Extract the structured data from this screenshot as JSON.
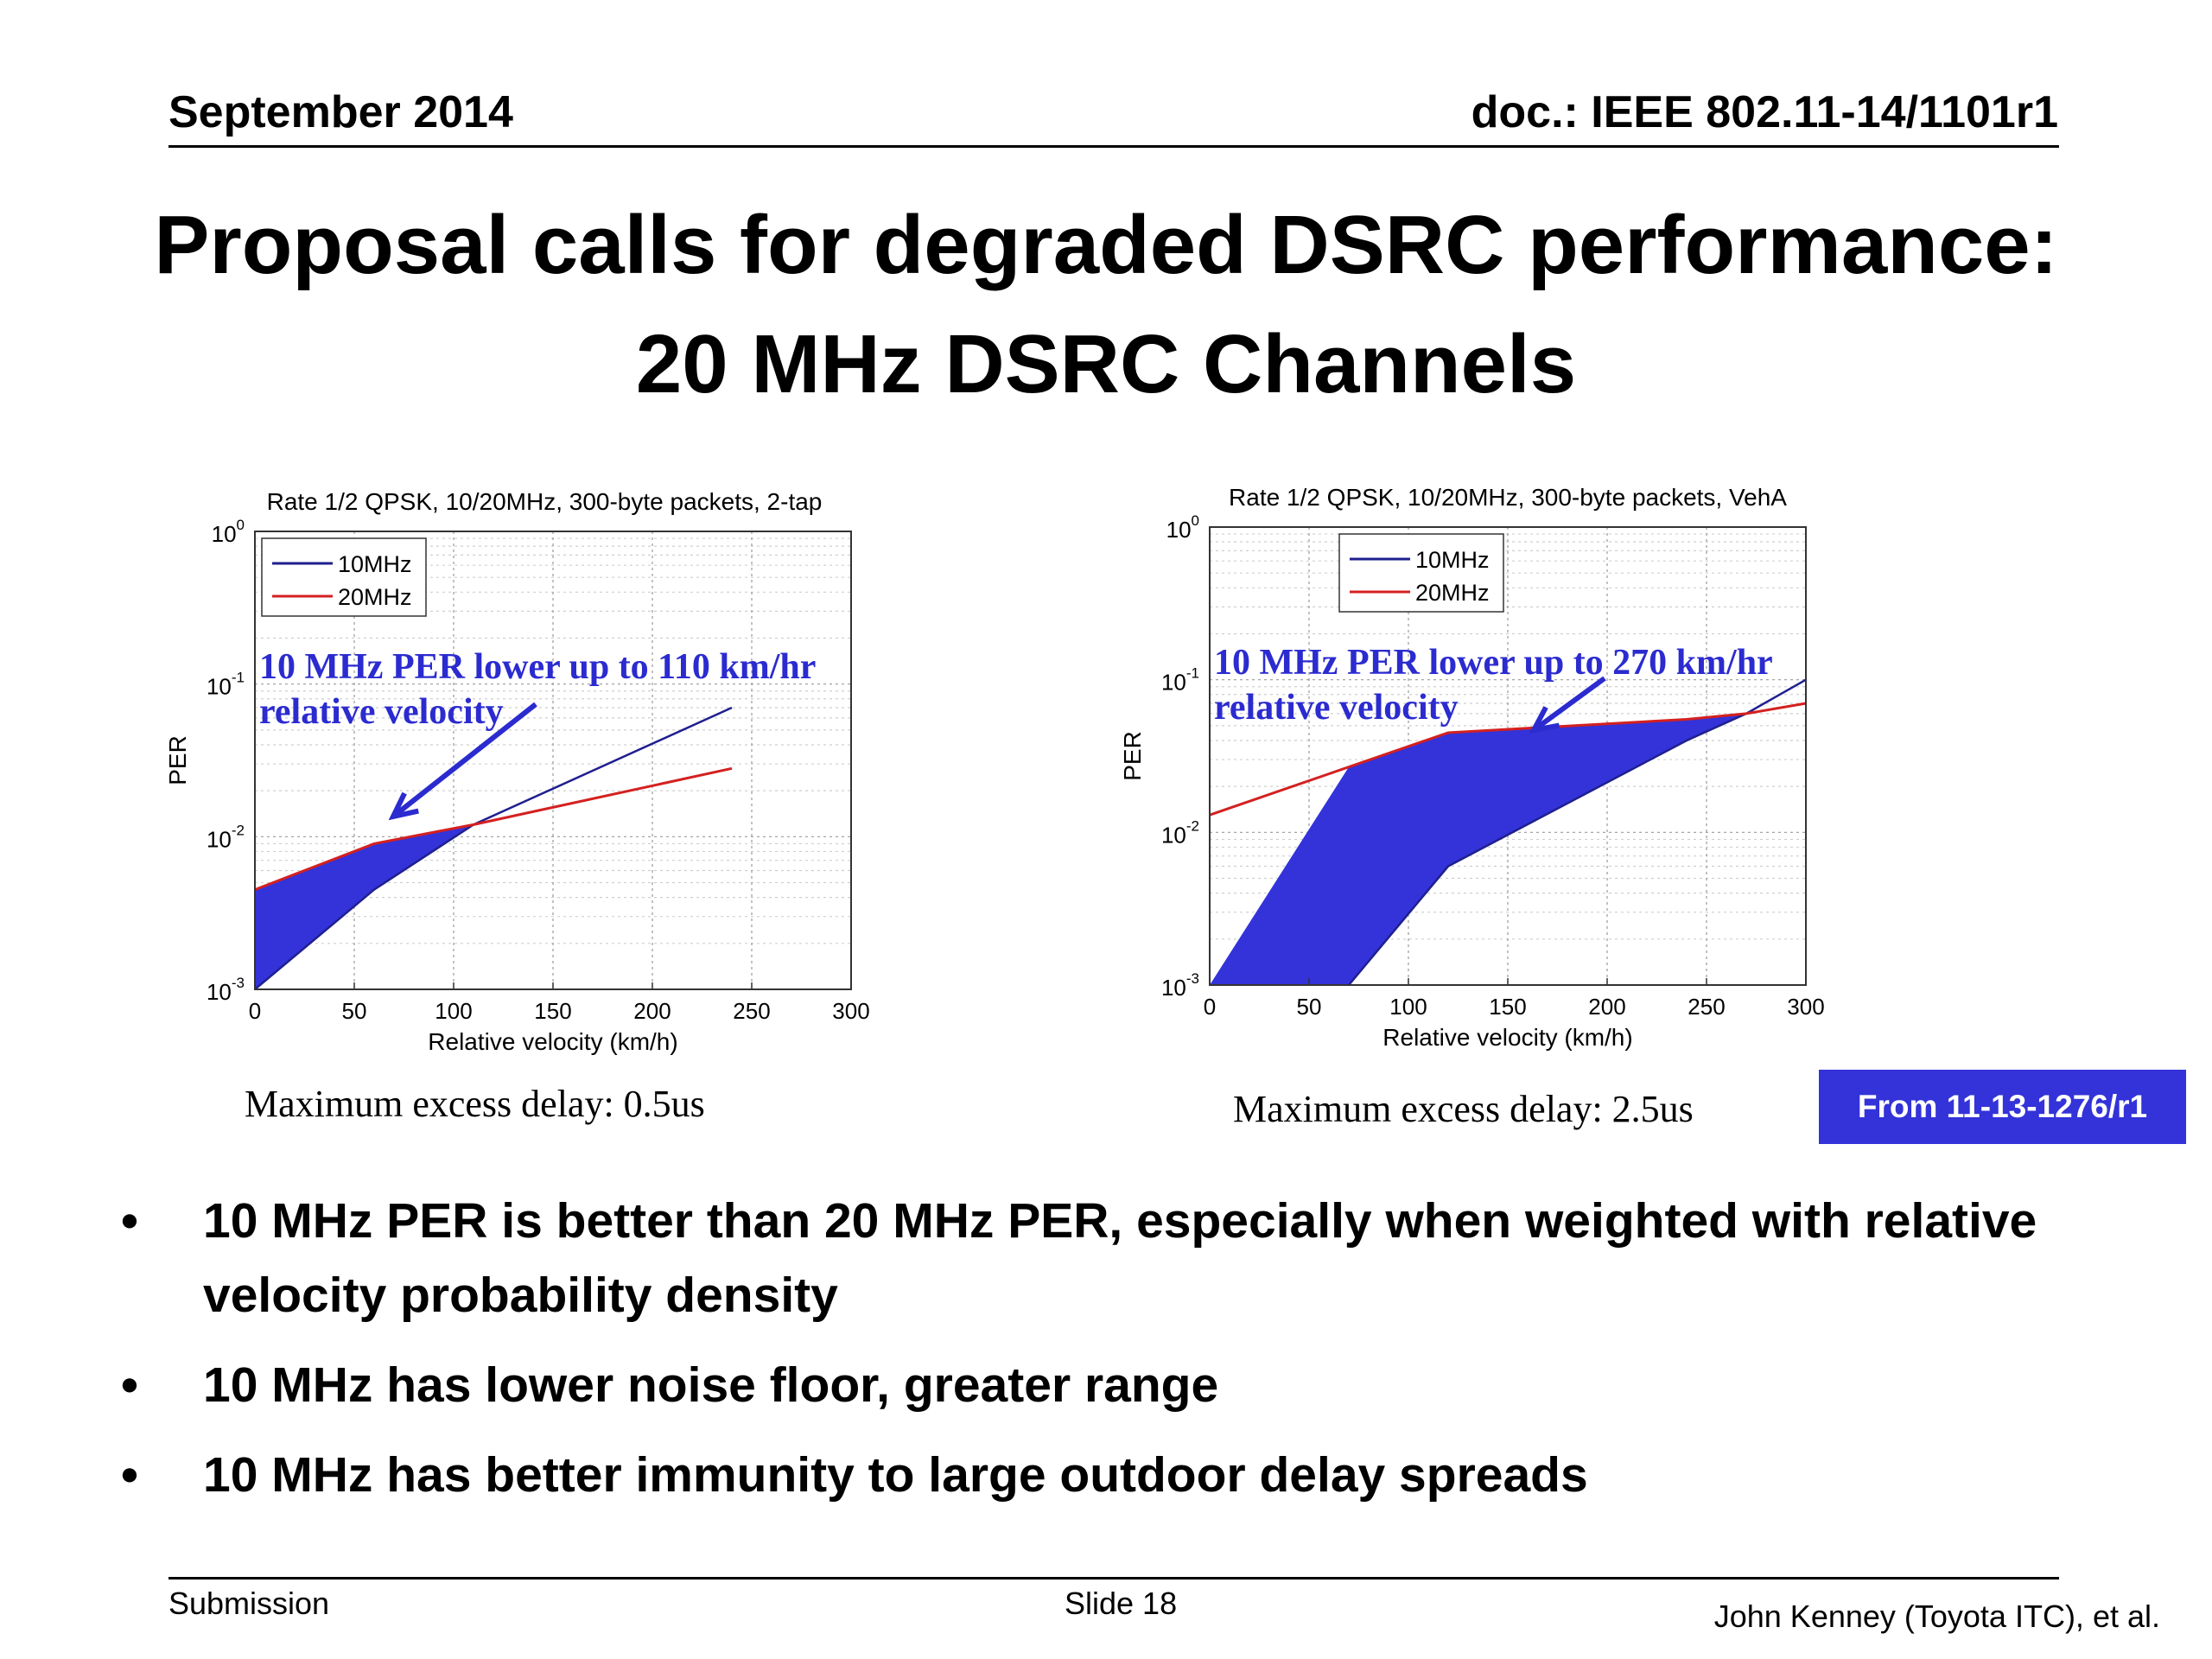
{
  "header": {
    "date": "September 2014",
    "doc": "doc.: IEEE 802.11-14/1101r1"
  },
  "title": {
    "line1": "Proposal calls for degraded DSRC performance:",
    "line2": "20 MHz DSRC Channels"
  },
  "chart_data": [
    {
      "type": "line",
      "title": "Rate 1/2 QPSK, 10/20MHz, 300-byte packets, 2-tap",
      "xlabel": "Relative velocity (km/h)",
      "ylabel": "PER",
      "xlim": [
        0,
        300
      ],
      "ylim": [
        0.001,
        1
      ],
      "y_scale": "log",
      "x_ticks": [
        "0",
        "50",
        "100",
        "150",
        "200",
        "250",
        "300"
      ],
      "grid": true,
      "legend_position": "top-left",
      "series": [
        {
          "name": "10MHz",
          "color": "#1f1f8f",
          "x": [
            0,
            60,
            110,
            240
          ],
          "y": [
            0.001,
            0.0045,
            0.012,
            0.07
          ]
        },
        {
          "name": "20MHz",
          "color": "#d42020",
          "x": [
            0,
            60,
            110,
            240
          ],
          "y": [
            0.0045,
            0.009,
            0.012,
            0.028
          ]
        }
      ],
      "annotation": {
        "line1": "10 MHz PER lower up to 110 km/hr",
        "line2": "relative velocity"
      }
    },
    {
      "type": "line",
      "title": "Rate 1/2 QPSK, 10/20MHz, 300-byte packets, VehA",
      "xlabel": "Relative velocity (km/h)",
      "ylabel": "PER",
      "xlim": [
        0,
        300
      ],
      "ylim": [
        0.001,
        1
      ],
      "y_scale": "log",
      "x_ticks": [
        "0",
        "50",
        "100",
        "150",
        "200",
        "250",
        "300"
      ],
      "grid": true,
      "legend_position": "top-center",
      "series": [
        {
          "name": "10MHz",
          "color": "#1f1f8f",
          "x": [
            70,
            120,
            240,
            270,
            300
          ],
          "y": [
            0.001,
            0.006,
            0.04,
            0.06,
            0.1
          ]
        },
        {
          "name": "20MHz",
          "color": "#d42020",
          "x": [
            0,
            120,
            240,
            270,
            300
          ],
          "y": [
            0.013,
            0.045,
            0.055,
            0.06,
            0.07
          ]
        }
      ],
      "annotation": {
        "line1": "10 MHz PER lower up to 270 km/hr",
        "line2": "relative velocity"
      }
    }
  ],
  "captions": {
    "left": "Maximum excess delay: 0.5us",
    "right": "Maximum excess delay: 2.5us"
  },
  "source_badge": "From 11-13-1276/r1",
  "bullets": [
    {
      "marker": "•",
      "text": "10 MHz PER is better than 20 MHz PER, especially when weighted with relative velocity probability density"
    },
    {
      "marker": "•",
      "text": "10 MHz has lower noise floor, greater range"
    },
    {
      "marker": "•",
      "text": "10 MHz has better immunity to large outdoor delay spreads"
    }
  ],
  "footer": {
    "left": "Submission",
    "center": "Slide 18",
    "right": "John Kenney (Toyota ITC), et al."
  },
  "colors": {
    "fill": "#3333d9",
    "annotation": "#2b2bd0",
    "badge": "#3333d9"
  }
}
